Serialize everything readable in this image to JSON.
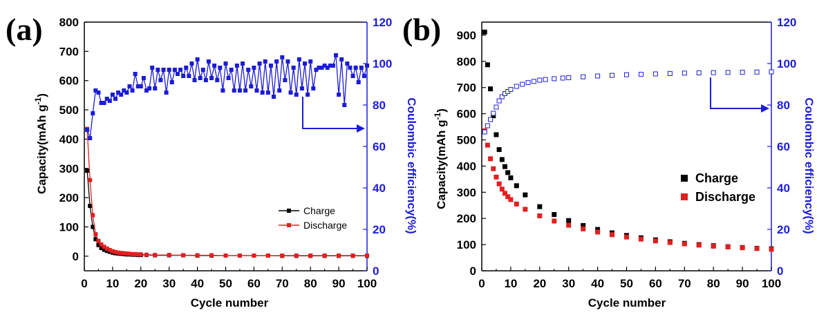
{
  "chart_data": [
    {
      "panel_label": "(a)",
      "type": "line",
      "xlabel": "Cycle number",
      "ylabel": "Capacity(mAh g",
      "ylabel_sup": "-1",
      "ylabel_close": ")",
      "y2label": "Coulombic efficiency(%)",
      "xlim": [
        0,
        100
      ],
      "ylim": [
        -50,
        800
      ],
      "y2lim": [
        0,
        120
      ],
      "xticks": [
        0,
        10,
        20,
        30,
        40,
        50,
        60,
        70,
        80,
        90,
        100
      ],
      "yticks": [
        0,
        100,
        200,
        300,
        400,
        500,
        600,
        700,
        800
      ],
      "y2ticks": [
        0,
        20,
        40,
        60,
        80,
        100,
        120
      ],
      "legend": {
        "position": "center-right",
        "entries": [
          "Charge",
          "Discharge"
        ]
      },
      "series": [
        {
          "name": "Charge",
          "axis": "left",
          "color": "#000000",
          "marker": "square-filled",
          "line": true,
          "x": [
            1,
            2,
            3,
            4,
            5,
            6,
            7,
            8,
            9,
            10,
            11,
            12,
            13,
            14,
            15,
            16,
            17,
            18,
            19,
            20,
            22,
            25,
            30,
            35,
            40,
            45,
            50,
            55,
            60,
            65,
            70,
            75,
            80,
            85,
            90,
            95,
            100
          ],
          "y": [
            292,
            172,
            100,
            58,
            38,
            28,
            22,
            18,
            15,
            12,
            10,
            9,
            8,
            7,
            6,
            6,
            5,
            5,
            4,
            4,
            4,
            3,
            3,
            3,
            2,
            2,
            2,
            2,
            2,
            2,
            1,
            1,
            1,
            1,
            1,
            1,
            1
          ]
        },
        {
          "name": "Discharge",
          "axis": "left",
          "color": "#e02020",
          "marker": "square-filled",
          "line": true,
          "x": [
            1,
            2,
            3,
            4,
            5,
            6,
            7,
            8,
            9,
            10,
            11,
            12,
            13,
            14,
            15,
            16,
            17,
            18,
            19,
            20,
            22,
            25,
            30,
            35,
            40,
            45,
            50,
            55,
            60,
            65,
            70,
            75,
            80,
            85,
            90,
            95,
            100
          ],
          "y": [
            435,
            260,
            140,
            75,
            52,
            40,
            32,
            26,
            21,
            17,
            14,
            12,
            11,
            10,
            9,
            8,
            7,
            7,
            6,
            6,
            5,
            4,
            4,
            3,
            3,
            3,
            2,
            2,
            2,
            2,
            2,
            2,
            2,
            2,
            2,
            2,
            2
          ]
        },
        {
          "name": "Coulombic efficiency",
          "axis": "right",
          "color": "#1c1cd6",
          "marker": "square-filled",
          "line": true,
          "x": [
            1,
            2,
            3,
            4,
            5,
            6,
            7,
            8,
            9,
            10,
            11,
            12,
            13,
            14,
            15,
            16,
            17,
            18,
            19,
            20,
            21,
            22,
            23,
            24,
            25,
            26,
            27,
            28,
            29,
            30,
            31,
            32,
            33,
            34,
            35,
            36,
            37,
            38,
            39,
            40,
            41,
            42,
            43,
            44,
            45,
            46,
            47,
            48,
            49,
            50,
            51,
            52,
            53,
            54,
            55,
            56,
            57,
            58,
            59,
            60,
            61,
            62,
            63,
            64,
            65,
            66,
            67,
            68,
            69,
            70,
            71,
            72,
            73,
            74,
            75,
            76,
            77,
            78,
            79,
            80,
            81,
            82,
            83,
            84,
            85,
            86,
            87,
            88,
            89,
            90,
            91,
            92,
            93,
            94,
            95,
            96,
            97,
            98,
            99,
            100
          ],
          "y": [
            68,
            64,
            76,
            87,
            86,
            81,
            81,
            83,
            82,
            85,
            83,
            86,
            85,
            87,
            86,
            89,
            87,
            95,
            89,
            89,
            93,
            87,
            88,
            98,
            88,
            97,
            92,
            97,
            86,
            97,
            91,
            97,
            95,
            97,
            94,
            98,
            94,
            100,
            92,
            102,
            93,
            97,
            92,
            101,
            93,
            99,
            92,
            98,
            87,
            100,
            93,
            97,
            87,
            99,
            87,
            100,
            87,
            97,
            89,
            98,
            87,
            100,
            86,
            101,
            86,
            99,
            84,
            101,
            87,
            103,
            92,
            101,
            86,
            98,
            85,
            102,
            88,
            100,
            85,
            101,
            88,
            97,
            98,
            98,
            99,
            98,
            99,
            99,
            104,
            85,
            102,
            80,
            100,
            98,
            94,
            98,
            91,
            98,
            94,
            99
          ]
        }
      ],
      "annotation": {
        "type": "arrow",
        "description": "arrow pointing to right axis",
        "color": "#1c1cd6"
      }
    },
    {
      "panel_label": "(b)",
      "type": "scatter",
      "xlabel": "Cycle number",
      "ylabel": "Capacity(mAh g",
      "ylabel_sup": "-1",
      "ylabel_close": ")",
      "y2label": "Coulombic efficiency(%)",
      "xlim": [
        0,
        100
      ],
      "ylim": [
        0,
        950
      ],
      "y2lim": [
        0,
        120
      ],
      "xticks": [
        0,
        10,
        20,
        30,
        40,
        50,
        60,
        70,
        80,
        90,
        100
      ],
      "yticks": [
        0,
        100,
        200,
        300,
        400,
        500,
        600,
        700,
        800,
        900
      ],
      "y2ticks": [
        0,
        20,
        40,
        60,
        80,
        100,
        120
      ],
      "legend": {
        "position": "center-right",
        "entries": [
          "Charge",
          "Discharge"
        ]
      },
      "series": [
        {
          "name": "Charge",
          "axis": "left",
          "color": "#000000",
          "marker": "square-filled",
          "line": false,
          "x": [
            1,
            2,
            3,
            4,
            5,
            6,
            7,
            8,
            9,
            10,
            12,
            15,
            20,
            25,
            30,
            35,
            40,
            45,
            50,
            55,
            60,
            65,
            70,
            75,
            80,
            85,
            90,
            95,
            100
          ],
          "y": [
            912,
            787,
            695,
            592,
            520,
            463,
            425,
            398,
            375,
            355,
            325,
            290,
            245,
            215,
            192,
            173,
            158,
            145,
            135,
            126,
            118,
            111,
            105,
            100,
            96,
            92,
            89,
            86,
            84
          ]
        },
        {
          "name": "Discharge",
          "axis": "left",
          "color": "#e02020",
          "marker": "square-filled",
          "line": false,
          "x": [
            1,
            2,
            3,
            4,
            5,
            6,
            7,
            8,
            9,
            10,
            12,
            15,
            20,
            25,
            30,
            35,
            40,
            45,
            50,
            55,
            60,
            65,
            70,
            75,
            80,
            85,
            90,
            95,
            100
          ],
          "y": [
            535,
            480,
            428,
            390,
            358,
            332,
            312,
            296,
            283,
            272,
            255,
            235,
            210,
            190,
            174,
            160,
            148,
            138,
            129,
            121,
            114,
            108,
            103,
            98,
            94,
            91,
            88,
            85,
            82
          ]
        },
        {
          "name": "Coulombic efficiency",
          "axis": "right",
          "color": "#1c1cd6",
          "marker": "square-open",
          "line": false,
          "x": [
            1,
            2,
            3,
            4,
            5,
            6,
            7,
            8,
            9,
            10,
            12,
            14,
            16,
            18,
            20,
            22,
            25,
            28,
            30,
            35,
            40,
            45,
            50,
            55,
            60,
            65,
            70,
            75,
            80,
            85,
            90,
            95,
            100
          ],
          "y": [
            67,
            70,
            73,
            76,
            79,
            82,
            84,
            85.5,
            86.5,
            87.5,
            89,
            90,
            90.8,
            91.4,
            92,
            92.3,
            92.7,
            93,
            93.2,
            93.6,
            94,
            94.3,
            94.6,
            94.8,
            95,
            95.2,
            95.4,
            95.5,
            95.6,
            95.7,
            95.8,
            95.9,
            96
          ]
        }
      ],
      "annotation": {
        "type": "arrow",
        "description": "arrow pointing to right axis",
        "color": "#1c1cd6"
      }
    }
  ]
}
